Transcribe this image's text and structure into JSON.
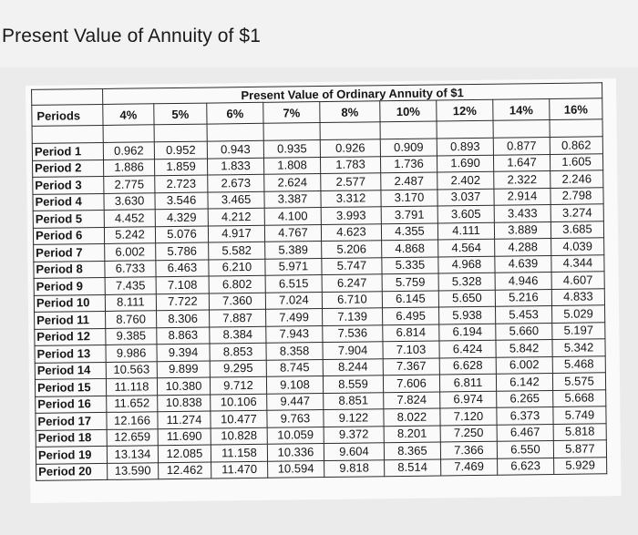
{
  "page": {
    "heading": "Present Value of Annuity of $1"
  },
  "table": {
    "title": "Present Value of Ordinary Annuity of $1",
    "columns": [
      "Periods",
      "4%",
      "5%",
      "6%",
      "7%",
      "8%",
      "10%",
      "12%",
      "14%",
      "16%"
    ],
    "rows": [
      [
        "Period 1",
        "0.962",
        "0.952",
        "0.943",
        "0.935",
        "0.926",
        "0.909",
        "0.893",
        "0.877",
        "0.862"
      ],
      [
        "Period 2",
        "1.886",
        "1.859",
        "1.833",
        "1.808",
        "1.783",
        "1.736",
        "1.690",
        "1.647",
        "1.605"
      ],
      [
        "Period 3",
        "2.775",
        "2.723",
        "2.673",
        "2.624",
        "2.577",
        "2.487",
        "2.402",
        "2.322",
        "2.246"
      ],
      [
        "Period 4",
        "3.630",
        "3.546",
        "3.465",
        "3.387",
        "3.312",
        "3.170",
        "3.037",
        "2.914",
        "2.798"
      ],
      [
        "Period 5",
        "4.452",
        "4.329",
        "4.212",
        "4.100",
        "3.993",
        "3.791",
        "3.605",
        "3.433",
        "3.274"
      ],
      [
        "Period 6",
        "5.242",
        "5.076",
        "4.917",
        "4.767",
        "4.623",
        "4.355",
        "4.111",
        "3.889",
        "3.685"
      ],
      [
        "Period 7",
        "6.002",
        "5.786",
        "5.582",
        "5.389",
        "5.206",
        "4.868",
        "4.564",
        "4.288",
        "4.039"
      ],
      [
        "Period 8",
        "6.733",
        "6.463",
        "6.210",
        "5.971",
        "5.747",
        "5.335",
        "4.968",
        "4.639",
        "4.344"
      ],
      [
        "Period 9",
        "7.435",
        "7.108",
        "6.802",
        "6.515",
        "6.247",
        "5.759",
        "5.328",
        "4.946",
        "4.607"
      ],
      [
        "Period 10",
        "8.111",
        "7.722",
        "7.360",
        "7.024",
        "6.710",
        "6.145",
        "5.650",
        "5.216",
        "4.833"
      ],
      [
        "Period 11",
        "8.760",
        "8.306",
        "7.887",
        "7.499",
        "7.139",
        "6.495",
        "5.938",
        "5.453",
        "5.029"
      ],
      [
        "Period 12",
        "9.385",
        "8.863",
        "8.384",
        "7.943",
        "7.536",
        "6.814",
        "6.194",
        "5.660",
        "5.197"
      ],
      [
        "Period 13",
        "9.986",
        "9.394",
        "8.853",
        "8.358",
        "7.904",
        "7.103",
        "6.424",
        "5.842",
        "5.342"
      ],
      [
        "Period 14",
        "10.563",
        "9.899",
        "9.295",
        "8.745",
        "8.244",
        "7.367",
        "6.628",
        "6.002",
        "5.468"
      ],
      [
        "Period 15",
        "11.118",
        "10.380",
        "9.712",
        "9.108",
        "8.559",
        "7.606",
        "6.811",
        "6.142",
        "5.575"
      ],
      [
        "Period 16",
        "11.652",
        "10.838",
        "10.106",
        "9.447",
        "8.851",
        "7.824",
        "6.974",
        "6.265",
        "5.668"
      ],
      [
        "Period 17",
        "12.166",
        "11.274",
        "10.477",
        "9.763",
        "9.122",
        "8.022",
        "7.120",
        "6.373",
        "5.749"
      ],
      [
        "Period 18",
        "12.659",
        "11.690",
        "10.828",
        "10.059",
        "9.372",
        "8.201",
        "7.250",
        "6.467",
        "5.818"
      ],
      [
        "Period 19",
        "13.134",
        "12.085",
        "11.158",
        "10.336",
        "9.604",
        "8.365",
        "7.366",
        "6.550",
        "5.877"
      ],
      [
        "Period 20",
        "13.590",
        "12.462",
        "11.470",
        "10.594",
        "9.818",
        "8.514",
        "7.469",
        "6.623",
        "5.929"
      ]
    ]
  }
}
